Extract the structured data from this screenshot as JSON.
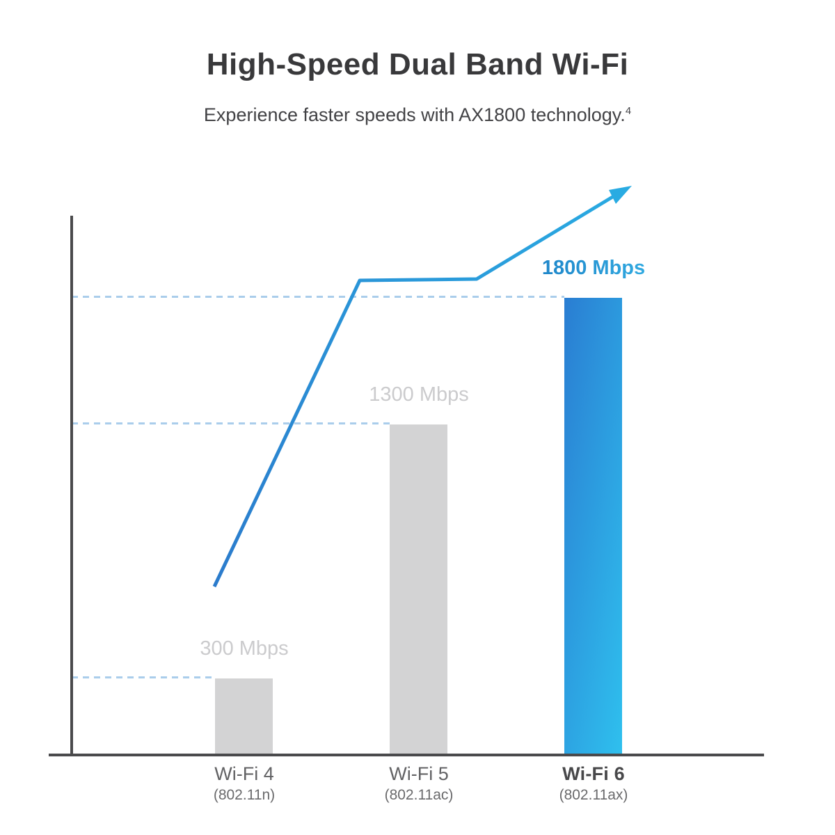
{
  "header": {
    "title": "High-Speed Dual Band Wi-Fi",
    "subtitle": "Experience faster speeds with AX1800 technology.",
    "subtitle_footnote": "4"
  },
  "chart_data": {
    "type": "bar",
    "title": "High-Speed Dual Band Wi-Fi",
    "subtitle": "Experience faster speeds with AX1800 technology.",
    "categories": [
      "Wi-Fi 4",
      "Wi-Fi 5",
      "Wi-Fi 6"
    ],
    "category_sublabels": [
      "(802.11n)",
      "(802.11ac)",
      "(802.11ax)"
    ],
    "values": [
      300,
      1300,
      1800
    ],
    "value_labels": [
      "300 Mbps",
      "1300 Mbps",
      "1800 Mbps"
    ],
    "unit": "Mbps",
    "xlabel": "",
    "ylabel": "",
    "ylim": [
      0,
      2000
    ],
    "grid": "horizontal dashed reference line at each bar top",
    "legend": "none",
    "annotations": [
      "rising trend line with arrow pointing up-right above bars"
    ],
    "highlighted_category": "Wi-Fi 6"
  },
  "colors": {
    "background": "#ffffff",
    "title_text": "#39393b",
    "subtitle_text": "#424245",
    "gray_bar": "#d3d3d4",
    "gray_value_label": "#cbcbcd",
    "blue_bar_gradient_start": "#2a7dd2",
    "blue_bar_gradient_end": "#2fc0ee",
    "blue_value_label_start": "#1b7ec4",
    "blue_value_label_end": "#35b2e6",
    "trend_line_start": "#2b7bcc",
    "trend_line_end": "#29abe2",
    "dashed_gridline": "#aacdeb",
    "axis": "#4a4a4c"
  }
}
